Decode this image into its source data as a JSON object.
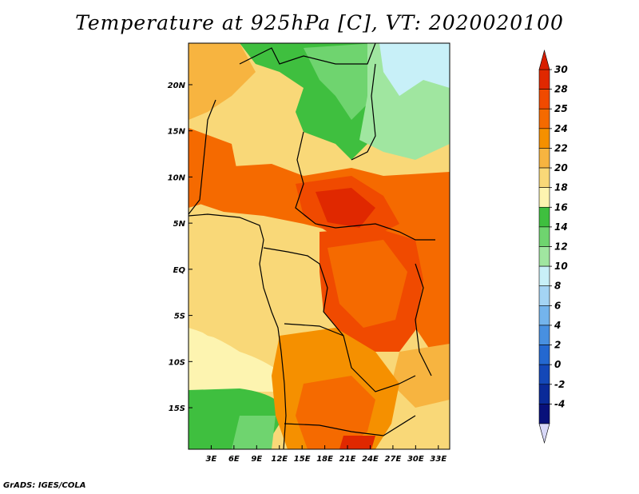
{
  "title": "Temperature at 925hPa [C], VT: 2020020100",
  "credit": "GrADS: IGES/COLA",
  "map": {
    "lon_labels": [
      "3E",
      "6E",
      "9E",
      "12E",
      "15E",
      "18E",
      "21E",
      "24E",
      "27E",
      "30E",
      "33E"
    ],
    "lon_values": [
      3,
      6,
      9,
      12,
      15,
      18,
      21,
      24,
      27,
      30,
      33
    ],
    "lat_labels": [
      "20N",
      "15N",
      "10N",
      "5N",
      "EQ",
      "5S",
      "10S",
      "15S"
    ],
    "lat_values": [
      20,
      15,
      10,
      5,
      0,
      -5,
      -10,
      -15
    ],
    "lon_range": [
      0,
      34.5
    ],
    "lat_range": [
      -19.5,
      24.5
    ]
  },
  "colorbar": {
    "labels": [
      "30",
      "28",
      "25",
      "24",
      "22",
      "20",
      "18",
      "16",
      "14",
      "12",
      "10",
      "8",
      "6",
      "4",
      "2",
      "0",
      "-2",
      "-4"
    ],
    "colors": [
      "#e02800",
      "#f04a00",
      "#f56a00",
      "#f59000",
      "#f7b440",
      "#f9d878",
      "#fdf4b0",
      "#3fbf3f",
      "#6fd46f",
      "#a0e6a0",
      "#c8f0f8",
      "#a4d4f4",
      "#74b4ec",
      "#4890e0",
      "#2468d0",
      "#1448b8",
      "#0a2a98",
      "#08107a"
    ],
    "top_color": "#d81e00",
    "bottom_color": "#d8d8f8"
  },
  "regions": [
    {
      "name": "south-atlantic-warm",
      "color": "#f9d878"
    },
    {
      "name": "gulf-guinea-cool",
      "color": "#fdf4b0"
    },
    {
      "name": "sahara-green",
      "color": "#6fd46f"
    },
    {
      "name": "central-africa-hot",
      "color": "#f04a00"
    },
    {
      "name": "congo-basin-hot",
      "color": "#f56a00"
    },
    {
      "name": "southwest-green",
      "color": "#3fbf3f"
    },
    {
      "name": "north-cool-cyan",
      "color": "#c8f0f8"
    }
  ]
}
